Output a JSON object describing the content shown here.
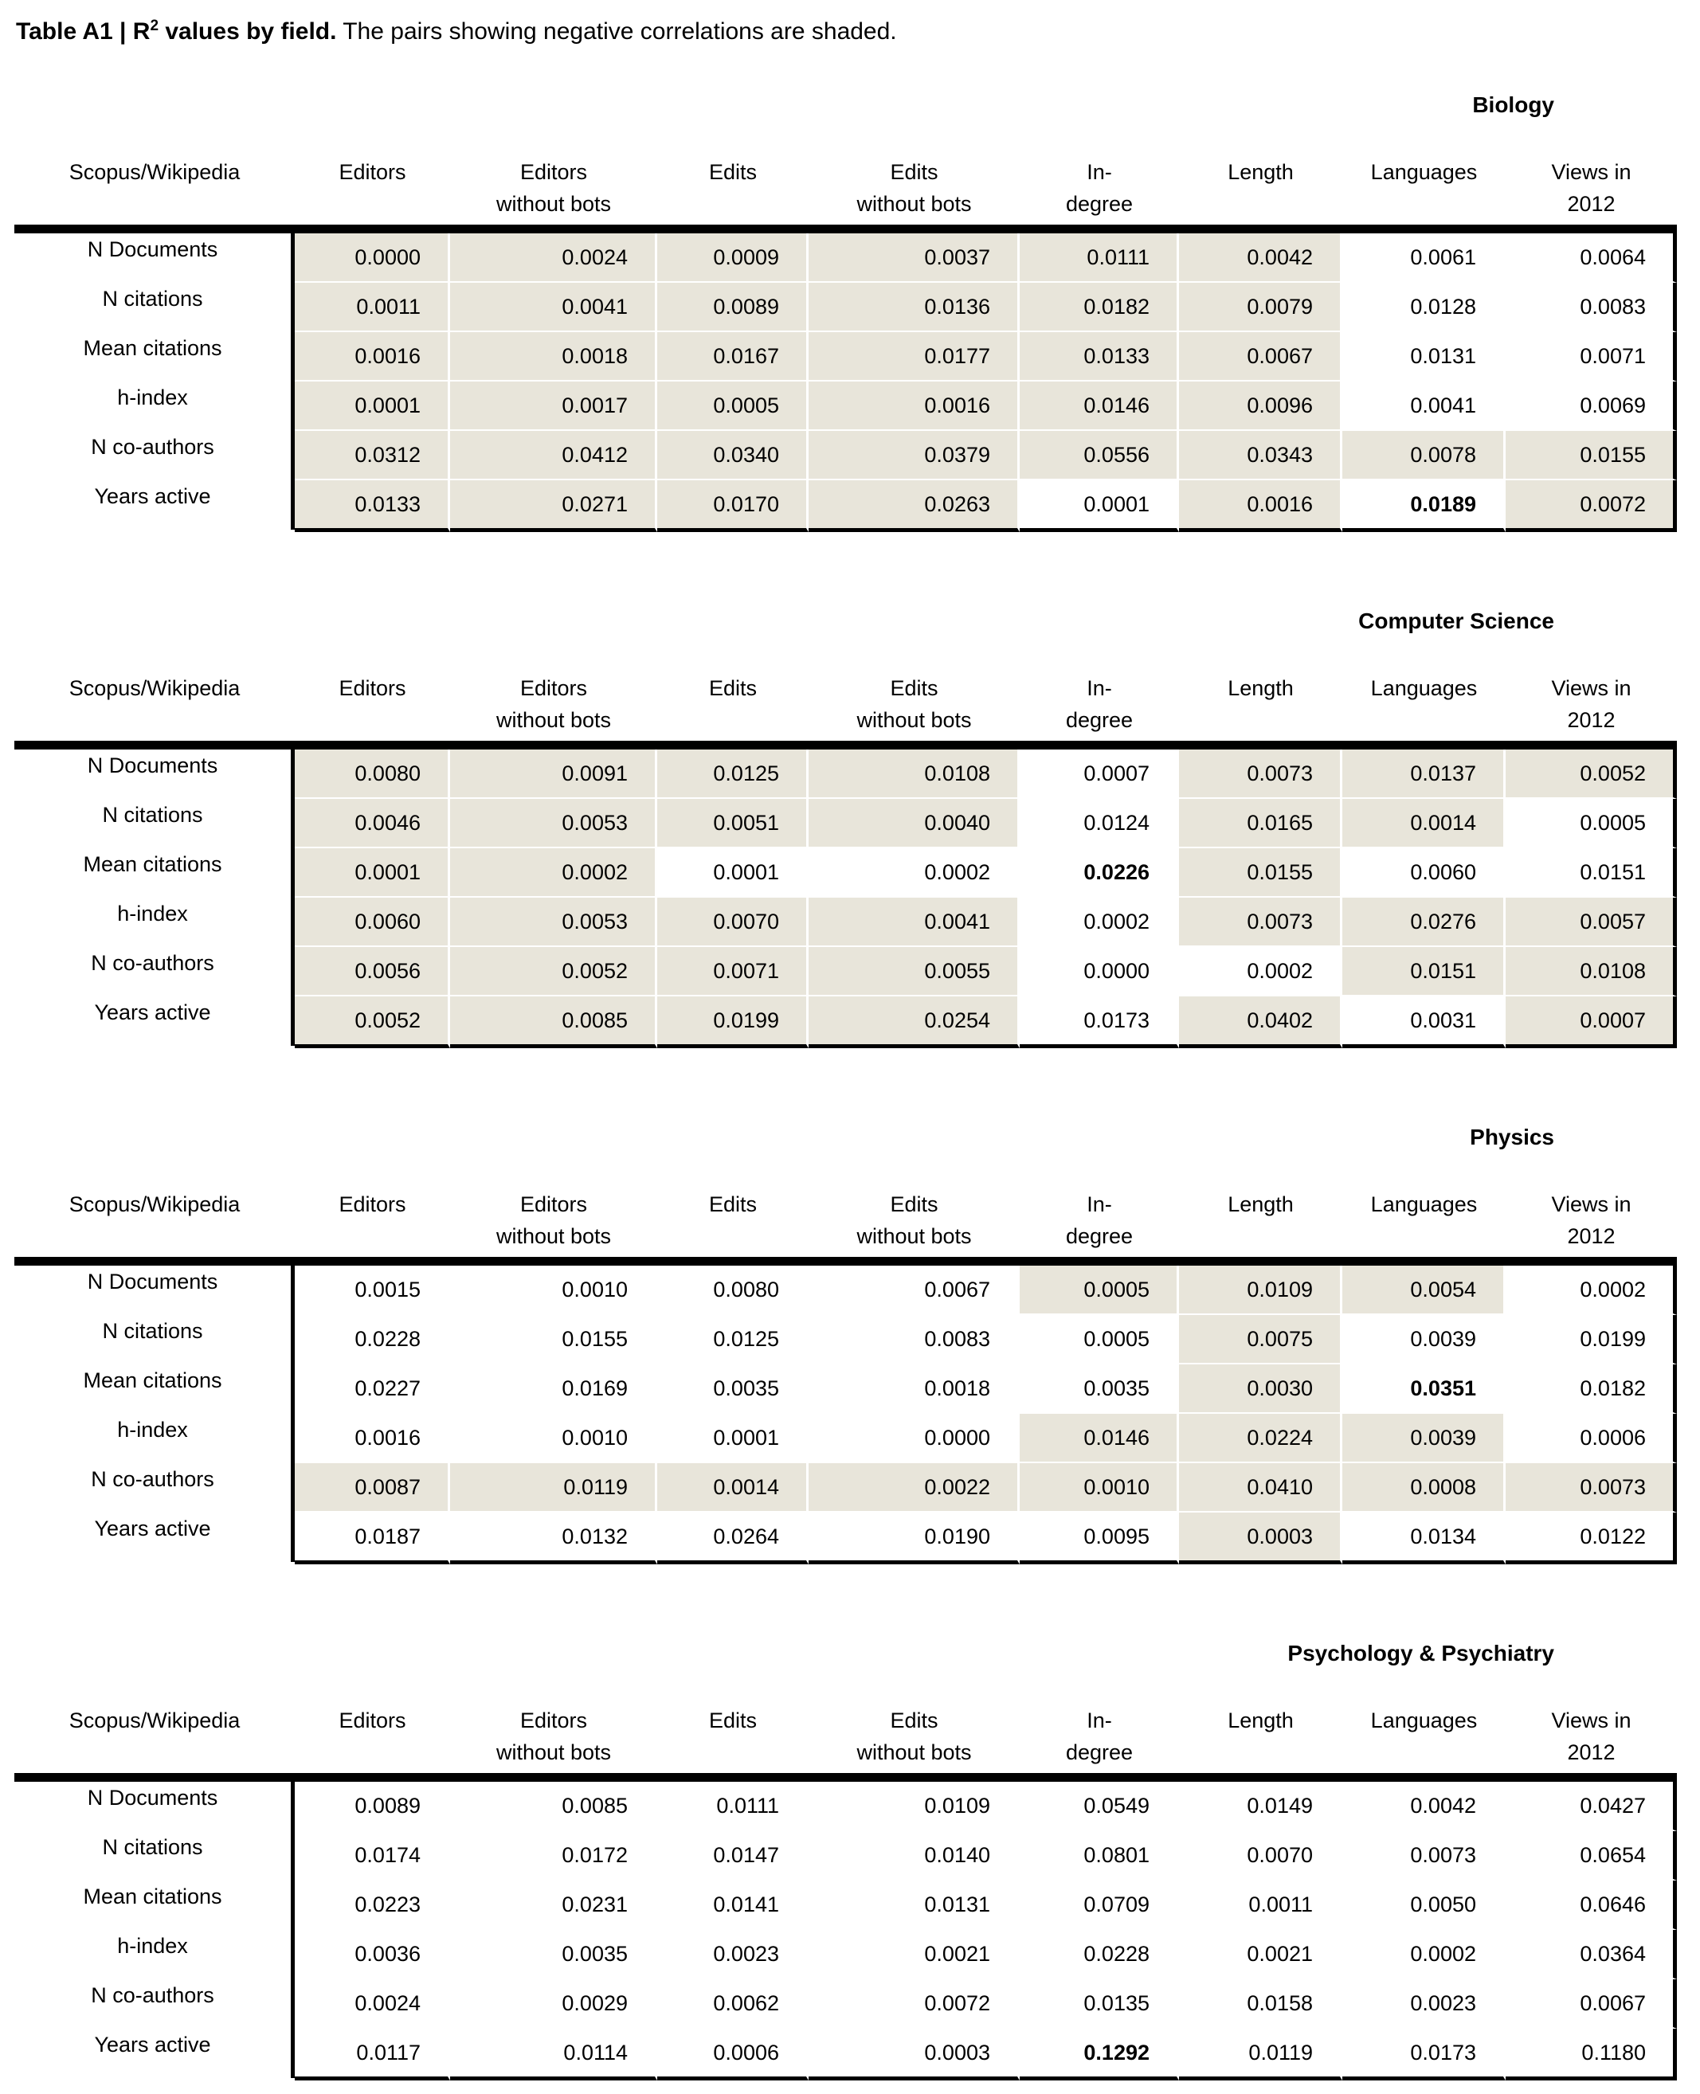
{
  "doc_title": {
    "bold_pre": "Table A1 | R",
    "sup": "2",
    "bold_post": " values by field.",
    "rest": " The pairs showing negative correlations are shaded."
  },
  "columns": [
    {
      "l1": "Scopus/Wikipedia",
      "l2": ""
    },
    {
      "l1": "Editors",
      "l2": ""
    },
    {
      "l1": "Editors",
      "l2": "without bots"
    },
    {
      "l1": "Edits",
      "l2": ""
    },
    {
      "l1": "Edits",
      "l2": "without bots"
    },
    {
      "l1": "In-",
      "l2": "degree"
    },
    {
      "l1": "Length",
      "l2": ""
    },
    {
      "l1": "Languages",
      "l2": ""
    },
    {
      "l1": "Views in",
      "l2": "2012"
    }
  ],
  "row_labels": [
    "N Documents",
    "N citations",
    "Mean citations",
    "h-index",
    "N co-authors",
    "Years active"
  ],
  "shading_color": "#e8e5da",
  "tables": [
    {
      "title": "Biology",
      "values": [
        [
          "0.0000",
          "0.0024",
          "0.0009",
          "0.0037",
          "0.0111",
          "0.0042",
          "0.0061",
          "0.0064"
        ],
        [
          "0.0011",
          "0.0041",
          "0.0089",
          "0.0136",
          "0.0182",
          "0.0079",
          "0.0128",
          "0.0083"
        ],
        [
          "0.0016",
          "0.0018",
          "0.0167",
          "0.0177",
          "0.0133",
          "0.0067",
          "0.0131",
          "0.0071"
        ],
        [
          "0.0001",
          "0.0017",
          "0.0005",
          "0.0016",
          "0.0146",
          "0.0096",
          "0.0041",
          "0.0069"
        ],
        [
          "0.0312",
          "0.0412",
          "0.0340",
          "0.0379",
          "0.0556",
          "0.0343",
          "0.0078",
          "0.0155"
        ],
        [
          "0.0133",
          "0.0271",
          "0.0170",
          "0.0263",
          "0.0001",
          "0.0016",
          "0.0189",
          "0.0072"
        ]
      ],
      "shaded": [
        [
          1,
          1,
          1,
          1,
          1,
          1,
          0,
          0
        ],
        [
          1,
          1,
          1,
          1,
          1,
          1,
          0,
          0
        ],
        [
          1,
          1,
          1,
          1,
          1,
          1,
          0,
          0
        ],
        [
          1,
          1,
          1,
          1,
          1,
          1,
          0,
          0
        ],
        [
          1,
          1,
          1,
          1,
          1,
          1,
          1,
          1
        ],
        [
          1,
          1,
          1,
          1,
          0,
          1,
          0,
          1
        ]
      ],
      "bold_cell": [
        5,
        6
      ]
    },
    {
      "title": "Computer Science",
      "values": [
        [
          "0.0080",
          "0.0091",
          "0.0125",
          "0.0108",
          "0.0007",
          "0.0073",
          "0.0137",
          "0.0052"
        ],
        [
          "0.0046",
          "0.0053",
          "0.0051",
          "0.0040",
          "0.0124",
          "0.0165",
          "0.0014",
          "0.0005"
        ],
        [
          "0.0001",
          "0.0002",
          "0.0001",
          "0.0002",
          "0.0226",
          "0.0155",
          "0.0060",
          "0.0151"
        ],
        [
          "0.0060",
          "0.0053",
          "0.0070",
          "0.0041",
          "0.0002",
          "0.0073",
          "0.0276",
          "0.0057"
        ],
        [
          "0.0056",
          "0.0052",
          "0.0071",
          "0.0055",
          "0.0000",
          "0.0002",
          "0.0151",
          "0.0108"
        ],
        [
          "0.0052",
          "0.0085",
          "0.0199",
          "0.0254",
          "0.0173",
          "0.0402",
          "0.0031",
          "0.0007"
        ]
      ],
      "shaded": [
        [
          1,
          1,
          1,
          1,
          0,
          1,
          1,
          1
        ],
        [
          1,
          1,
          1,
          1,
          0,
          1,
          1,
          0
        ],
        [
          1,
          1,
          0,
          0,
          0,
          1,
          0,
          0
        ],
        [
          1,
          1,
          1,
          1,
          0,
          1,
          1,
          1
        ],
        [
          1,
          1,
          1,
          1,
          0,
          0,
          1,
          1
        ],
        [
          1,
          1,
          1,
          1,
          0,
          1,
          0,
          1
        ]
      ],
      "bold_cell": [
        2,
        4
      ]
    },
    {
      "title": "Physics",
      "values": [
        [
          "0.0015",
          "0.0010",
          "0.0080",
          "0.0067",
          "0.0005",
          "0.0109",
          "0.0054",
          "0.0002"
        ],
        [
          "0.0228",
          "0.0155",
          "0.0125",
          "0.0083",
          "0.0005",
          "0.0075",
          "0.0039",
          "0.0199"
        ],
        [
          "0.0227",
          "0.0169",
          "0.0035",
          "0.0018",
          "0.0035",
          "0.0030",
          "0.0351",
          "0.0182"
        ],
        [
          "0.0016",
          "0.0010",
          "0.0001",
          "0.0000",
          "0.0146",
          "0.0224",
          "0.0039",
          "0.0006"
        ],
        [
          "0.0087",
          "0.0119",
          "0.0014",
          "0.0022",
          "0.0010",
          "0.0410",
          "0.0008",
          "0.0073"
        ],
        [
          "0.0187",
          "0.0132",
          "0.0264",
          "0.0190",
          "0.0095",
          "0.0003",
          "0.0134",
          "0.0122"
        ]
      ],
      "shaded": [
        [
          0,
          0,
          0,
          0,
          1,
          1,
          1,
          0
        ],
        [
          0,
          0,
          0,
          0,
          0,
          1,
          0,
          0
        ],
        [
          0,
          0,
          0,
          0,
          0,
          1,
          0,
          0
        ],
        [
          0,
          0,
          0,
          0,
          1,
          1,
          1,
          0
        ],
        [
          1,
          1,
          1,
          1,
          1,
          1,
          1,
          1
        ],
        [
          0,
          0,
          0,
          0,
          0,
          1,
          0,
          0
        ]
      ],
      "bold_cell": [
        2,
        6
      ]
    },
    {
      "title": "Psychology & Psychiatry",
      "values": [
        [
          "0.0089",
          "0.0085",
          "0.0111",
          "0.0109",
          "0.0549",
          "0.0149",
          "0.0042",
          "0.0427"
        ],
        [
          "0.0174",
          "0.0172",
          "0.0147",
          "0.0140",
          "0.0801",
          "0.0070",
          "0.0073",
          "0.0654"
        ],
        [
          "0.0223",
          "0.0231",
          "0.0141",
          "0.0131",
          "0.0709",
          "0.0011",
          "0.0050",
          "0.0646"
        ],
        [
          "0.0036",
          "0.0035",
          "0.0023",
          "0.0021",
          "0.0228",
          "0.0021",
          "0.0002",
          "0.0364"
        ],
        [
          "0.0024",
          "0.0029",
          "0.0062",
          "0.0072",
          "0.0135",
          "0.0158",
          "0.0023",
          "0.0067"
        ],
        [
          "0.0117",
          "0.0114",
          "0.0006",
          "0.0003",
          "0.1292",
          "0.0119",
          "0.0173",
          "0.1180"
        ]
      ],
      "shaded": [
        [
          0,
          0,
          0,
          0,
          0,
          0,
          0,
          0
        ],
        [
          0,
          0,
          0,
          0,
          0,
          0,
          0,
          0
        ],
        [
          0,
          0,
          0,
          0,
          0,
          0,
          0,
          0
        ],
        [
          0,
          0,
          0,
          0,
          0,
          0,
          0,
          0
        ],
        [
          0,
          0,
          0,
          0,
          0,
          0,
          0,
          0
        ],
        [
          0,
          0,
          0,
          0,
          0,
          0,
          0,
          0
        ]
      ],
      "bold_cell": [
        5,
        4
      ]
    }
  ]
}
